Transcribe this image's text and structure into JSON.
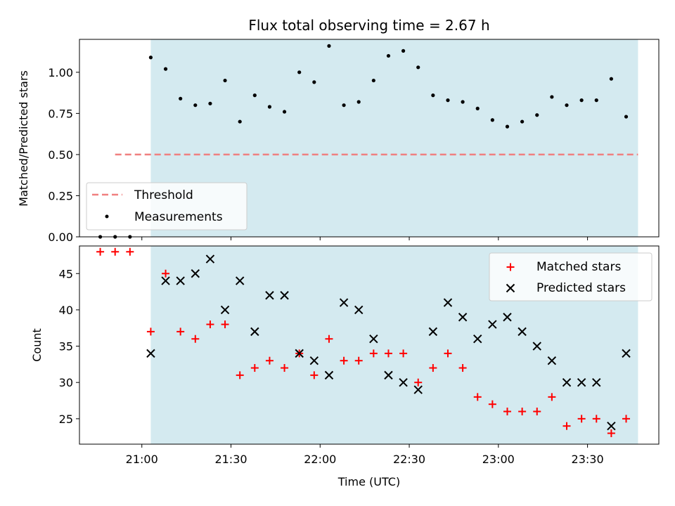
{
  "chart_data": {
    "type": "scatter",
    "title": "Flux total observing time = 2.67 h",
    "xlabel": "Time (UTC)",
    "x_ticks": [
      "21:00",
      "21:30",
      "22:00",
      "22:30",
      "23:00",
      "23:30"
    ],
    "x_range": [
      "20:39",
      "23:54"
    ],
    "shaded_interval": [
      "21:03",
      "23:47"
    ],
    "colors": {
      "shade": "#d4eaf0",
      "threshold": "#f08080",
      "matched": "#ff0000",
      "predicted": "#000000",
      "measurement": "#000000"
    },
    "times": [
      "20:51",
      "20:56",
      "21:01",
      "21:03",
      "21:08",
      "21:13",
      "21:18",
      "21:23",
      "21:28",
      "21:33",
      "21:38",
      "21:43",
      "21:48",
      "21:53",
      "21:58",
      "22:03",
      "22:08",
      "22:13",
      "22:18",
      "22:23",
      "22:28",
      "22:33",
      "22:38",
      "22:43",
      "22:48",
      "22:53",
      "22:58",
      "23:03",
      "23:08",
      "23:13",
      "23:18",
      "23:23",
      "23:28",
      "23:33",
      "23:38",
      "23:43"
    ],
    "top": {
      "ylabel": "Matched/Predicted stars",
      "ylim": [
        0,
        1.2
      ],
      "y_ticks": [
        "0.00",
        "0.25",
        "0.50",
        "0.75",
        "1.00"
      ],
      "threshold": 0.5,
      "threshold_range": [
        "20:51",
        "23:47"
      ],
      "legend": [
        "Threshold",
        "Measurements"
      ],
      "legend_position": "lower-left",
      "measurement_times": [
        "20:46",
        "20:51",
        "20:56",
        "21:03",
        "21:08",
        "21:13",
        "21:18",
        "21:23",
        "21:28",
        "21:33",
        "21:38",
        "21:43",
        "21:48",
        "21:53",
        "21:58",
        "22:03",
        "22:08",
        "22:13",
        "22:18",
        "22:23",
        "22:28",
        "22:33",
        "22:38",
        "22:43",
        "22:48",
        "22:53",
        "22:58",
        "23:03",
        "23:08",
        "23:13",
        "23:18",
        "23:23",
        "23:28",
        "23:33",
        "23:38",
        "23:43"
      ],
      "measurements": [
        0.0,
        0.0,
        0.0,
        1.09,
        1.02,
        0.84,
        0.8,
        0.81,
        0.95,
        0.7,
        0.86,
        0.79,
        0.76,
        1.0,
        0.94,
        1.16,
        0.8,
        0.82,
        0.95,
        1.1,
        1.13,
        1.03,
        0.86,
        0.83,
        0.82,
        0.78,
        0.71,
        0.67,
        0.7,
        0.74,
        0.85,
        0.8,
        0.83,
        0.83,
        0.96,
        0.73
      ]
    },
    "bottom": {
      "ylabel": "Count",
      "ylim": [
        21.5,
        48.8
      ],
      "y_ticks": [
        "25",
        "30",
        "35",
        "40",
        "45"
      ],
      "legend": [
        "Matched stars",
        "Predicted stars"
      ],
      "legend_position": "top-right",
      "matched_times": [
        "20:46",
        "20:51",
        "20:56",
        "21:03",
        "21:08",
        "21:13",
        "21:18",
        "21:23",
        "21:28",
        "21:33",
        "21:38",
        "21:43",
        "21:48",
        "21:53",
        "21:58",
        "22:03",
        "22:08",
        "22:13",
        "22:18",
        "22:23",
        "22:28",
        "22:33",
        "22:38",
        "22:43",
        "22:48",
        "22:53",
        "22:58",
        "23:03",
        "23:08",
        "23:13",
        "23:18",
        "23:23",
        "23:28",
        "23:33",
        "23:38",
        "23:43"
      ],
      "matched": [
        48,
        48,
        48,
        37,
        45,
        37,
        36,
        38,
        38,
        31,
        32,
        33,
        32,
        34,
        31,
        36,
        33,
        33,
        34,
        34,
        34,
        30,
        32,
        34,
        32,
        28,
        27,
        26,
        26,
        26,
        28,
        24,
        25,
        25,
        23,
        25
      ],
      "predicted_times": [
        "21:03",
        "21:08",
        "21:13",
        "21:18",
        "21:23",
        "21:28",
        "21:33",
        "21:38",
        "21:43",
        "21:48",
        "21:53",
        "21:58",
        "22:03",
        "22:08",
        "22:13",
        "22:18",
        "22:23",
        "22:28",
        "22:33",
        "22:38",
        "22:43",
        "22:48",
        "22:53",
        "22:58",
        "23:03",
        "23:08",
        "23:13",
        "23:18",
        "23:23",
        "23:28",
        "23:33",
        "23:38",
        "23:43"
      ],
      "predicted": [
        34,
        44,
        44,
        45,
        47,
        40,
        44,
        37,
        42,
        42,
        34,
        33,
        31,
        41,
        40,
        36,
        31,
        30,
        29,
        37,
        41,
        39,
        36,
        38,
        39,
        37,
        35,
        33,
        30,
        30,
        30,
        24,
        34
      ]
    }
  }
}
